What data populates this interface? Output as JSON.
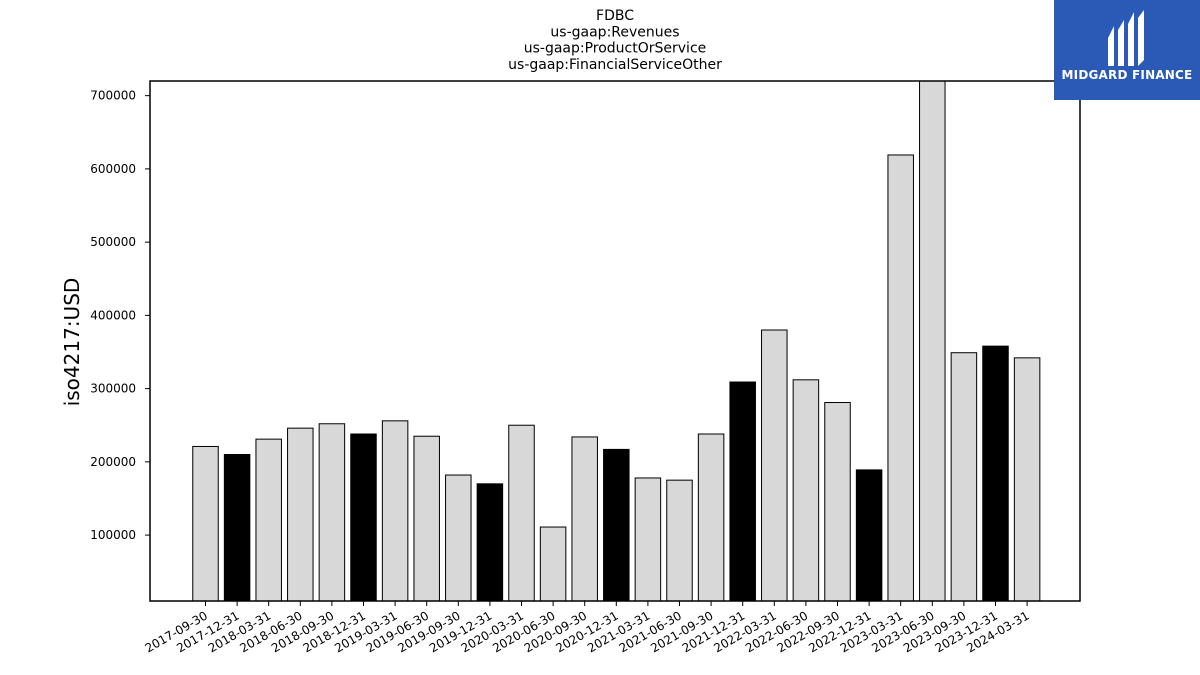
{
  "logo": {
    "text": "MIDGARD FINANCE",
    "background": "#2a5ab5",
    "icon": "midgard-m-mark-icon"
  },
  "chart_data": {
    "type": "bar",
    "title_lines": [
      "FDBC",
      "us-gaap:Revenues",
      "us-gaap:ProductOrService",
      "us-gaap:FinancialServiceOther"
    ],
    "xlabel": "",
    "ylabel": "iso4217:USD",
    "ylim": [
      10000,
      720000
    ],
    "yticks": [
      100000,
      200000,
      300000,
      400000,
      500000,
      600000,
      700000
    ],
    "categories": [
      "2017-09-30",
      "2017-12-31",
      "2018-03-31",
      "2018-06-30",
      "2018-09-30",
      "2018-12-31",
      "2019-03-31",
      "2019-06-30",
      "2019-09-30",
      "2019-12-31",
      "2020-03-31",
      "2020-06-30",
      "2020-09-30",
      "2020-12-31",
      "2021-03-31",
      "2021-06-30",
      "2021-09-30",
      "2021-12-31",
      "2022-03-31",
      "2022-06-30",
      "2022-09-30",
      "2022-12-31",
      "2023-03-31",
      "2023-06-30",
      "2023-09-30",
      "2023-12-31",
      "2024-03-31"
    ],
    "values": [
      221000,
      210000,
      231000,
      246000,
      252000,
      238000,
      256000,
      235000,
      182000,
      170000,
      250000,
      111000,
      234000,
      217000,
      178000,
      175000,
      238000,
      309000,
      380000,
      312000,
      281000,
      189000,
      619000,
      723000,
      349000,
      358000,
      342000
    ],
    "bar_colors": [
      "#d8d8d8",
      "#000000",
      "#d8d8d8",
      "#d8d8d8",
      "#d8d8d8",
      "#000000",
      "#d8d8d8",
      "#d8d8d8",
      "#d8d8d8",
      "#000000",
      "#d8d8d8",
      "#d8d8d8",
      "#d8d8d8",
      "#000000",
      "#d8d8d8",
      "#d8d8d8",
      "#d8d8d8",
      "#000000",
      "#d8d8d8",
      "#d8d8d8",
      "#d8d8d8",
      "#000000",
      "#d8d8d8",
      "#d8d8d8",
      "#d8d8d8",
      "#000000",
      "#d8d8d8"
    ],
    "grid": false,
    "legend": "none"
  }
}
